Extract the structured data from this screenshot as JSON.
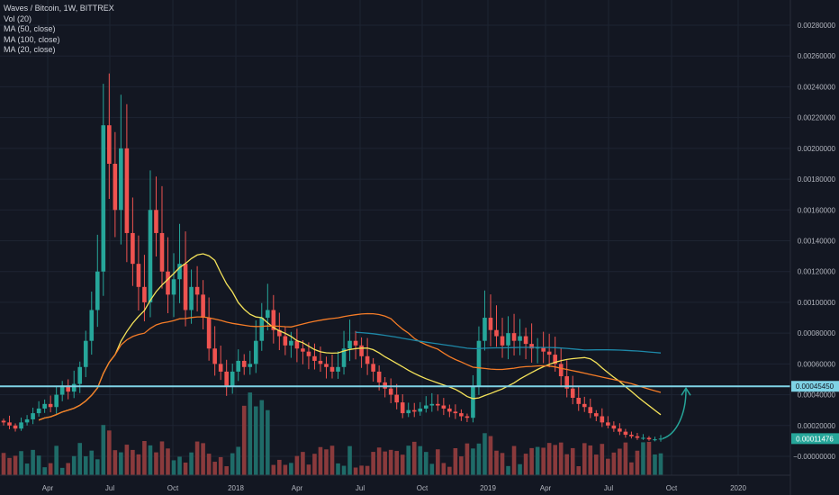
{
  "chart_meta": {
    "symbol_line": "Waves / Bitcoin, 1W, BITTREX",
    "indicators": [
      "Vol (20)",
      "MA (50, close)",
      "MA (100, close)",
      "MA (20, close)"
    ]
  },
  "colors": {
    "background": "#131722",
    "grid": "#1e2432",
    "up": "#26a69a",
    "down": "#ef5350",
    "volume_up": "#1f6b68",
    "volume_down": "#8a3a3c",
    "ma20": "#f5e35a",
    "ma50": "#f57c27",
    "ma100": "#1e88a8",
    "support_line": "#7fd3e6",
    "arrow": "#26a69a",
    "axis_text": "#b2b5be"
  },
  "chart_data": {
    "type": "candlestick",
    "title": "Waves / Bitcoin, 1W, BITTREX",
    "x_ticks": [
      "Apr",
      "Jul",
      "Oct",
      "2018",
      "Apr",
      "Jul",
      "Oct",
      "2019",
      "Apr",
      "Jul",
      "Oct",
      "2020"
    ],
    "y_ticks": [
      "0.00280000",
      "0.00260000",
      "0.00240000",
      "0.00220000",
      "0.00200000",
      "0.00180000",
      "0.00160000",
      "0.00140000",
      "0.00120000",
      "0.00100000",
      "0.00080000",
      "0.00060000",
      "0.00040000",
      "0.00020000",
      "−0.00000000"
    ],
    "ylim": [
      -2e-05,
      0.0029
    ],
    "grid": true,
    "price_labels": [
      {
        "label": "0.00045450",
        "value": 0.0004545
      },
      {
        "label": "0.00011476",
        "value": 0.00011476
      }
    ],
    "candles_close": [
      0.00022,
      0.0002,
      0.00018,
      0.00022,
      0.00024,
      0.00028,
      0.00031,
      0.00034,
      0.00032,
      0.0004,
      0.00046,
      0.00042,
      0.00047,
      0.00058,
      0.00075,
      0.00095,
      0.0012,
      0.00215,
      0.0019,
      0.0016,
      0.002,
      0.00145,
      0.00125,
      0.0011,
      0.001,
      0.0016,
      0.00145,
      0.0012,
      0.00105,
      0.00115,
      0.00125,
      0.00095,
      0.0011,
      0.00105,
      0.0009,
      0.0007,
      0.0006,
      0.00055,
      0.00045,
      0.00055,
      0.00062,
      0.00058,
      0.0006,
      0.00075,
      0.0009,
      0.00095,
      0.00082,
      0.00078,
      0.00072,
      0.00075,
      0.0007,
      0.00068,
      0.00065,
      0.00062,
      0.0006,
      0.00058,
      0.00055,
      0.00058,
      0.0007,
      0.00075,
      0.00072,
      0.00065,
      0.0006,
      0.00055,
      0.00048,
      0.00044,
      0.0004,
      0.00035,
      0.00028,
      0.0003,
      0.00029,
      0.00031,
      0.00033,
      0.00034,
      0.00033,
      0.00031,
      0.00029,
      0.00028,
      0.00026,
      0.00025,
      0.00045,
      0.00075,
      0.0009,
      0.00082,
      0.00078,
      0.00072,
      0.0008,
      0.00075,
      0.00078,
      0.00073,
      0.0007,
      0.00071,
      0.00068,
      0.00066,
      0.0006,
      0.00052,
      0.00044,
      0.00038,
      0.00034,
      0.00032,
      0.00028,
      0.00026,
      0.00022,
      0.0002,
      0.00018,
      0.00016,
      0.00014,
      0.00013,
      0.00012,
      0.00012,
      0.00011,
      0.00011,
      0.00011476
    ],
    "series": [
      {
        "name": "MA (20, close)"
      },
      {
        "name": "MA (50, close)"
      },
      {
        "name": "MA (100, close)"
      }
    ],
    "horizontal_line": 0.0004545
  }
}
